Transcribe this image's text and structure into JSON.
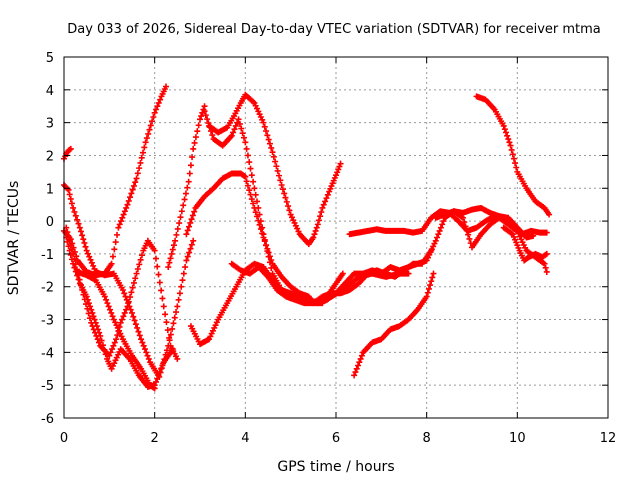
{
  "chart_data": {
    "type": "scatter",
    "title": "Day 033 of 2026, Sidereal Day-to-day VTEC variation (SDTVAR) for receiver mtma",
    "xlabel": "GPS time / hours",
    "ylabel": "SDTVAR / TECUs",
    "xlim": [
      0,
      12
    ],
    "ylim": [
      -6,
      5
    ],
    "xticks": [
      "0",
      "2",
      "4",
      "6",
      "8",
      "10",
      "12"
    ],
    "yticks": [
      "-6",
      "-5",
      "-4",
      "-3",
      "-2",
      "-1",
      "0",
      "1",
      "2",
      "3",
      "4",
      "5"
    ],
    "grid": true,
    "marker": "plus",
    "color": "#ff0000",
    "series": [
      {
        "x": [
          0.0,
          0.05,
          0.1,
          0.15
        ],
        "y": [
          1.9,
          2.05,
          2.15,
          2.2
        ]
      },
      {
        "x": [
          0.0,
          0.1,
          0.2,
          0.35,
          0.5,
          0.7,
          0.9,
          1.1,
          1.3,
          1.5,
          1.7,
          1.9,
          2.1,
          2.3,
          2.5,
          2.7,
          2.85
        ],
        "y": [
          1.1,
          0.95,
          0.4,
          -0.2,
          -0.9,
          -1.55,
          -1.65,
          -1.6,
          -2.1,
          -2.8,
          -3.6,
          -4.3,
          -4.75,
          -3.8,
          -2.6,
          -1.2,
          -0.6
        ]
      },
      {
        "x": [
          0.0,
          0.15,
          0.3,
          0.5,
          0.7,
          0.9,
          1.05,
          1.2,
          1.4,
          1.6,
          1.8,
          2.0,
          2.15,
          2.25
        ],
        "y": [
          -0.3,
          -0.55,
          -1.2,
          -1.55,
          -1.65,
          -1.6,
          -1.3,
          -0.2,
          0.5,
          1.3,
          2.4,
          3.3,
          3.8,
          4.1
        ]
      },
      {
        "x": [
          0.05,
          0.2,
          0.4,
          0.6,
          0.8,
          1.0,
          1.15,
          1.25,
          1.4,
          1.6,
          1.75,
          1.85,
          2.0,
          2.2,
          2.35,
          2.5
        ],
        "y": [
          -0.2,
          -1.0,
          -2.1,
          -3.1,
          -3.8,
          -4.1,
          -3.6,
          -3.1,
          -2.6,
          -1.6,
          -0.9,
          -0.6,
          -0.9,
          -2.6,
          -3.8,
          -4.2
        ]
      },
      {
        "x": [
          0.05,
          0.2,
          0.35,
          0.5,
          0.65,
          0.8,
          0.95,
          1.05,
          1.25,
          1.45,
          1.65,
          1.85,
          2.0,
          2.2,
          2.4
        ],
        "y": [
          -0.5,
          -1.3,
          -1.9,
          -2.3,
          -2.9,
          -3.5,
          -4.2,
          -4.5,
          -3.9,
          -4.2,
          -4.7,
          -5.05,
          -5.0,
          -4.3,
          -3.9
        ]
      },
      {
        "x": [
          0.3,
          0.5,
          0.7,
          0.9,
          1.1,
          1.3,
          1.5,
          1.7,
          1.9,
          2.0
        ],
        "y": [
          -1.55,
          -1.65,
          -1.8,
          -2.3,
          -3.0,
          -3.6,
          -4.1,
          -4.5,
          -5.0,
          -5.1
        ]
      },
      {
        "x": [
          2.3,
          2.45,
          2.6,
          2.75,
          2.85,
          3.0,
          3.1
        ],
        "y": [
          -1.4,
          -0.6,
          0.3,
          1.2,
          2.2,
          3.1,
          3.5
        ]
      },
      {
        "x": [
          2.7,
          2.9,
          3.1,
          3.3,
          3.5,
          3.7,
          3.9,
          4.0,
          4.2,
          4.4,
          4.6,
          4.8,
          5.0,
          5.2,
          5.4,
          5.5,
          5.7,
          5.9,
          6.05,
          6.15
        ],
        "y": [
          -0.4,
          0.4,
          0.75,
          1.0,
          1.3,
          1.45,
          1.45,
          1.35,
          0.4,
          -0.5,
          -1.3,
          -1.7,
          -2.0,
          -2.2,
          -2.3,
          -2.5,
          -2.5,
          -2.1,
          -1.8,
          -1.6
        ]
      },
      {
        "x": [
          3.2,
          3.4,
          3.6,
          3.75,
          3.9,
          4.0,
          4.2,
          4.4,
          4.6,
          4.8,
          5.0,
          5.2,
          5.4,
          5.5,
          5.6,
          5.7,
          5.85,
          6.0,
          6.1
        ],
        "y": [
          2.9,
          2.7,
          2.85,
          3.2,
          3.6,
          3.85,
          3.6,
          3.0,
          2.1,
          1.1,
          0.2,
          -0.4,
          -0.7,
          -0.5,
          -0.1,
          0.4,
          0.9,
          1.4,
          1.75
        ]
      },
      {
        "x": [
          3.1,
          3.3,
          3.5,
          3.7,
          3.85,
          4.0,
          4.2,
          4.4,
          4.6,
          4.8,
          5.0,
          5.3,
          5.6,
          5.9,
          6.2,
          6.5,
          6.8,
          7.1,
          7.4,
          7.6
        ],
        "y": [
          3.35,
          2.5,
          2.3,
          2.6,
          3.1,
          2.4,
          1.0,
          -0.4,
          -1.6,
          -2.1,
          -2.35,
          -2.45,
          -2.45,
          -2.3,
          -2.05,
          -1.7,
          -1.6,
          -1.7,
          -1.6,
          -1.6
        ]
      },
      {
        "x": [
          2.8,
          3.0,
          3.2,
          3.4,
          3.6,
          3.8,
          4.0,
          4.2,
          4.4,
          4.6,
          4.8,
          5.0,
          5.2,
          5.4,
          5.6,
          5.8,
          6.0,
          6.2,
          6.4,
          6.6,
          6.8,
          7.0,
          7.2,
          7.4,
          7.6,
          7.8,
          8.0,
          8.2,
          8.4,
          8.6,
          8.8,
          9.0,
          9.2,
          9.4,
          9.6,
          9.8,
          10.0,
          10.2,
          10.35
        ],
        "y": [
          -3.2,
          -3.75,
          -3.6,
          -3.0,
          -2.5,
          -2.0,
          -1.5,
          -1.3,
          -1.4,
          -1.8,
          -2.1,
          -2.2,
          -2.3,
          -2.4,
          -2.5,
          -2.4,
          -2.2,
          -1.9,
          -1.6,
          -1.6,
          -1.5,
          -1.6,
          -1.4,
          -1.5,
          -1.4,
          -1.3,
          -1.2,
          -0.6,
          0.1,
          0.3,
          0.25,
          0.35,
          0.4,
          0.25,
          0.15,
          0.1,
          -0.2,
          -0.5,
          -0.45
        ]
      },
      {
        "x": [
          3.7,
          3.9,
          4.1,
          4.3,
          4.5,
          4.7,
          4.9,
          5.1,
          5.3,
          5.5,
          5.7,
          5.9,
          6.1,
          6.3,
          6.5,
          6.7,
          6.9,
          7.1,
          7.3,
          7.5,
          7.7,
          7.9,
          8.1
        ],
        "y": [
          -1.3,
          -1.5,
          -1.6,
          -1.4,
          -1.7,
          -2.1,
          -2.3,
          -2.4,
          -2.5,
          -2.5,
          -2.3,
          -2.2,
          -2.2,
          -2.1,
          -1.9,
          -1.6,
          -1.5,
          -1.6,
          -1.7,
          -1.5,
          -1.3,
          -1.3,
          -0.9
        ]
      },
      {
        "x": [
          6.3,
          6.5,
          6.7,
          6.9,
          7.1,
          7.3,
          7.5,
          7.7,
          7.9,
          8.1,
          8.3,
          8.5,
          8.7,
          8.9,
          9.1,
          9.3,
          9.5,
          9.7,
          9.9,
          10.1,
          10.3,
          10.5,
          10.65
        ],
        "y": [
          -0.4,
          -0.35,
          -0.3,
          -0.25,
          -0.3,
          -0.3,
          -0.3,
          -0.35,
          -0.3,
          0.1,
          0.3,
          0.25,
          0.0,
          -0.3,
          -0.2,
          0.0,
          0.15,
          0.1,
          -0.2,
          -0.4,
          -0.3,
          -0.35,
          -0.35
        ]
      },
      {
        "x": [
          6.4,
          6.6,
          6.8,
          7.0,
          7.2,
          7.4,
          7.6,
          7.8,
          8.0,
          8.15
        ],
        "y": [
          -4.7,
          -4.0,
          -3.7,
          -3.6,
          -3.3,
          -3.2,
          -3.0,
          -2.7,
          -2.3,
          -1.6
        ]
      },
      {
        "x": [
          8.2,
          8.4,
          8.6,
          8.8,
          9.0,
          9.2,
          9.4,
          9.6,
          9.8,
          10.0,
          10.2,
          10.4,
          10.6,
          10.65
        ],
        "y": [
          0.1,
          0.2,
          0.3,
          0.1,
          -0.8,
          -0.4,
          -0.1,
          0.1,
          -0.1,
          -0.3,
          -0.9,
          -1.1,
          -1.3,
          -1.55
        ]
      },
      {
        "x": [
          9.1,
          9.3,
          9.5,
          9.7,
          9.85,
          10.0,
          10.2,
          10.4,
          10.6,
          10.7
        ],
        "y": [
          3.8,
          3.7,
          3.4,
          2.9,
          2.3,
          1.5,
          1.0,
          0.6,
          0.4,
          0.2
        ]
      },
      {
        "x": [
          9.7,
          9.9,
          10.05,
          10.15,
          10.25,
          10.4,
          10.55,
          10.65
        ],
        "y": [
          -0.2,
          -0.4,
          -0.9,
          -1.2,
          -1.1,
          -1.0,
          -1.1,
          -1.0
        ]
      }
    ]
  }
}
